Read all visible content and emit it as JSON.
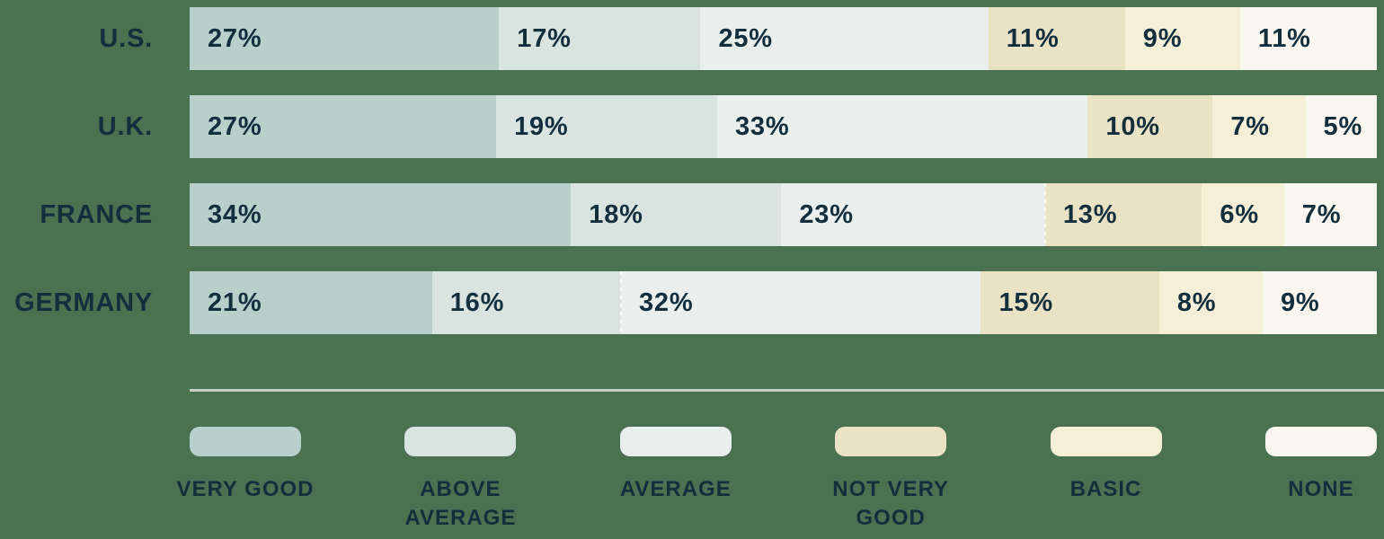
{
  "chart_data": {
    "type": "bar",
    "stacked": true,
    "orientation": "horizontal",
    "value_suffix": "%",
    "categories": [
      "U.S.",
      "U.K.",
      "FRANCE",
      "GERMANY"
    ],
    "series": [
      {
        "name": "VERY GOOD",
        "label_lines": [
          "VERY GOOD"
        ],
        "color": "#b8cfcc",
        "values": [
          27,
          27,
          34,
          21
        ]
      },
      {
        "name": "ABOVE AVERAGE",
        "label_lines": [
          "ABOVE",
          "AVERAGE"
        ],
        "color": "#d9e4e1",
        "values": [
          17,
          19,
          18,
          16
        ]
      },
      {
        "name": "AVERAGE",
        "label_lines": [
          "AVERAGE"
        ],
        "color": "#e8efec",
        "values": [
          25,
          33,
          23,
          32
        ]
      },
      {
        "name": "NOT VERY GOOD",
        "label_lines": [
          "NOT VERY",
          "GOOD"
        ],
        "color": "#eae2c4",
        "values": [
          11,
          10,
          13,
          15
        ]
      },
      {
        "name": "BASIC",
        "label_lines": [
          "BASIC"
        ],
        "color": "#f5efd8",
        "values": [
          9,
          7,
          6,
          8
        ]
      },
      {
        "name": "NONE",
        "label_lines": [
          "NONE"
        ],
        "color": "#f9f7ef",
        "values": [
          11,
          5,
          7,
          9
        ]
      }
    ],
    "value_labels_position": "inside-left",
    "legend_position": "bottom",
    "title": "",
    "xlabel": "",
    "ylabel": "",
    "grid": false
  },
  "colors": {
    "background": "#4a7150",
    "label_text": "#132e3d",
    "divider": "#c5cfc6"
  },
  "dashed_separators": [
    {
      "row": "FRANCE",
      "series": "NOT VERY GOOD"
    },
    {
      "row": "GERMANY",
      "series": "AVERAGE"
    }
  ]
}
